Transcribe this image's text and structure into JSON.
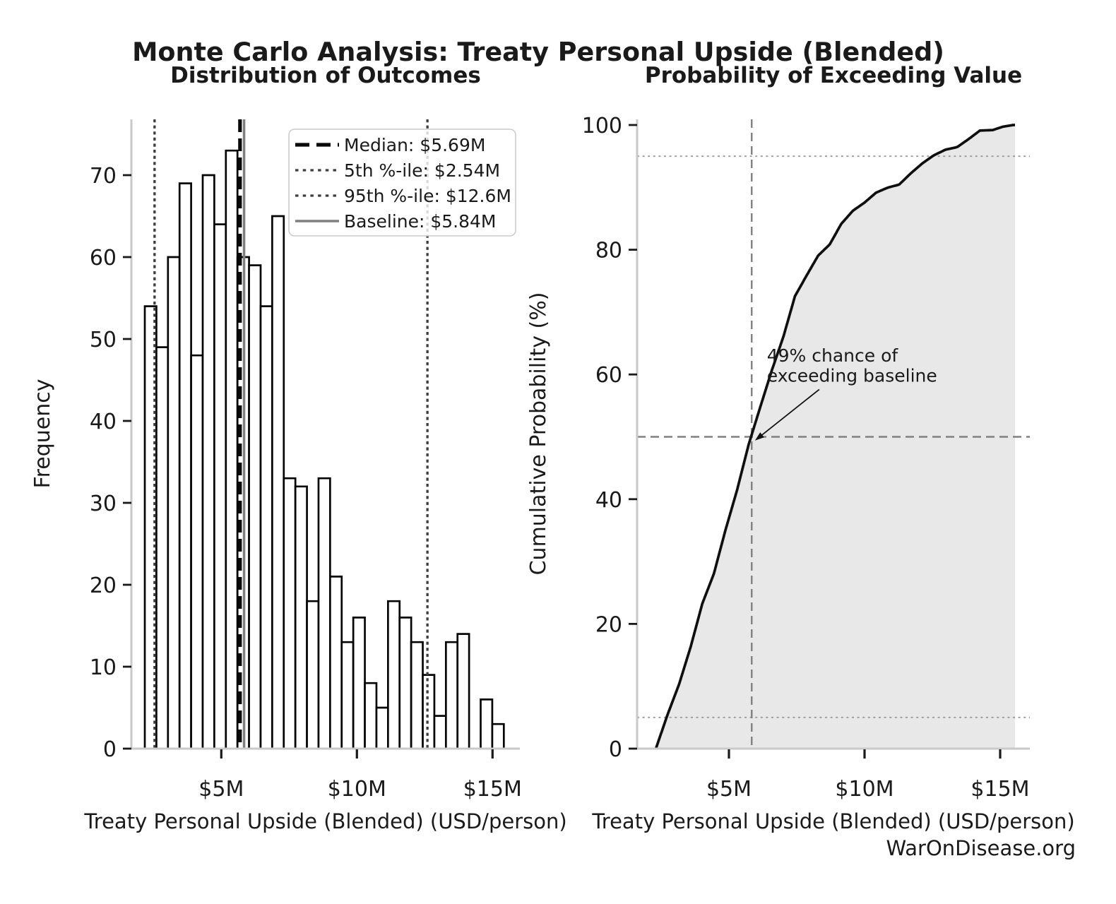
{
  "figure": {
    "title": "Monte Carlo Analysis: Treaty Personal Upside (Blended)",
    "footer": "WarOnDisease.org"
  },
  "colors": {
    "bar_fill": "#ffffff",
    "bar_edge": "#050505",
    "median_line": "#0a0a0a",
    "percentile_line": "#3d3d3d",
    "baseline_line": "#7f7f7f",
    "cdf_line": "#0f0f0f",
    "cdf_fill": "#e8e8e8",
    "ref_dotted": "#9b9b9b",
    "ref_dashed": "#808080",
    "spine": "#c9c9c9",
    "tick": "#1a1a1a",
    "text": "#1a1a1a",
    "footer_text": "#3d3d3d"
  },
  "chart_data": [
    {
      "type": "bar",
      "title": "Distribution of Outcomes",
      "xlabel": "Treaty Personal Upside (Blended) (USD/person)",
      "ylabel": "Frequency",
      "x_ticks": [
        {
          "v": 5,
          "label": "$5M"
        },
        {
          "v": 10,
          "label": "$10M"
        },
        {
          "v": 15,
          "label": "$15M"
        }
      ],
      "y_ticks": [
        0,
        10,
        20,
        30,
        40,
        50,
        60,
        70
      ],
      "bin_start_musd": 2.18,
      "bin_width_musd": 0.427,
      "counts": [
        54,
        49,
        60,
        69,
        48,
        70,
        64,
        73,
        60,
        59,
        54,
        65,
        33,
        32,
        18,
        33,
        21,
        13,
        16,
        8,
        5,
        18,
        16,
        13,
        9,
        4,
        13,
        14,
        0,
        6,
        3
      ],
      "n_samples": 1000,
      "ref_lines": [
        {
          "name": "median",
          "label": "Median: $5.69M",
          "value_musd": 5.69,
          "style": "dashed-black-thick"
        },
        {
          "name": "p5",
          "label": "5th %-ile: $2.54M",
          "value_musd": 2.54,
          "style": "dotted-gray"
        },
        {
          "name": "p95",
          "label": "95th %-ile: $12.6M",
          "value_musd": 12.6,
          "style": "dotted-gray"
        },
        {
          "name": "baseline",
          "label": "Baseline: $5.84M",
          "value_musd": 5.84,
          "style": "solid-gray"
        }
      ],
      "legend_position": "upper right"
    },
    {
      "type": "line",
      "title": "Probability of Exceeding Value",
      "xlabel": "Treaty Personal Upside (Blended) (USD/person)",
      "ylabel": "Cumulative Probability (%)",
      "x_ticks": [
        {
          "v": 5,
          "label": "$5M"
        },
        {
          "v": 10,
          "label": "$10M"
        },
        {
          "v": 15,
          "label": "$15M"
        }
      ],
      "y_ticks": [
        0,
        20,
        40,
        60,
        80,
        100
      ],
      "h_ref_lines_pct": [
        {
          "v": 5,
          "style": "dotted"
        },
        {
          "v": 50,
          "style": "dashed"
        },
        {
          "v": 95,
          "style": "dotted"
        }
      ],
      "v_ref_line_musd": {
        "v": 5.84,
        "style": "dashed"
      },
      "fill_under": true,
      "annotation": {
        "text_lines": [
          "49% chance of",
          "exceeding baseline"
        ],
        "text_at": [
          6.4,
          62.6
        ],
        "arrow_from": [
          8.33,
          57.6
        ],
        "arrow_to": [
          5.96,
          49.4
        ]
      }
    }
  ]
}
